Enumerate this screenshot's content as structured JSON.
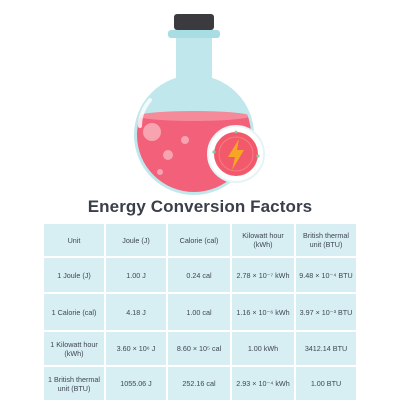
{
  "title": "Energy Conversion Factors",
  "icons": {
    "flask": "flask-icon",
    "energy": "lightning-bolt-icon"
  },
  "colors": {
    "liquid": "#f2607a",
    "glass": "#bfe7ec",
    "cap": "#3a3a3f",
    "badge": "#f25a6b",
    "bolt": "#f5a623",
    "table_cell": "#d7eef3",
    "text": "#3f4653"
  },
  "table": {
    "headers": [
      "Unit",
      "Joule (J)",
      "Calorie (cal)",
      "Kilowatt hour (kWh)",
      "British thermal unit (BTU)"
    ],
    "rows": [
      [
        "1 Joule (J)",
        "1.00 J",
        "0.24 cal",
        "2.78 × 10⁻⁷ kWh",
        "9.48 × 10⁻⁴ BTU"
      ],
      [
        "1 Calorie (cal)",
        "4.18 J",
        "1.00 cal",
        "1.16 × 10⁻⁶ kWh",
        "3.97 × 10⁻³ BTU"
      ],
      [
        "1 Kilowatt hour (kWh)",
        "3.60 × 10⁶ J",
        "8.60 × 10⁵ cal",
        "1.00 kWh",
        "3412.14 BTU"
      ],
      [
        "1 British thermal unit (BTU)",
        "1055.06 J",
        "252.16 cal",
        "2.93 × 10⁻⁴ kWh",
        "1.00 BTU"
      ]
    ]
  }
}
